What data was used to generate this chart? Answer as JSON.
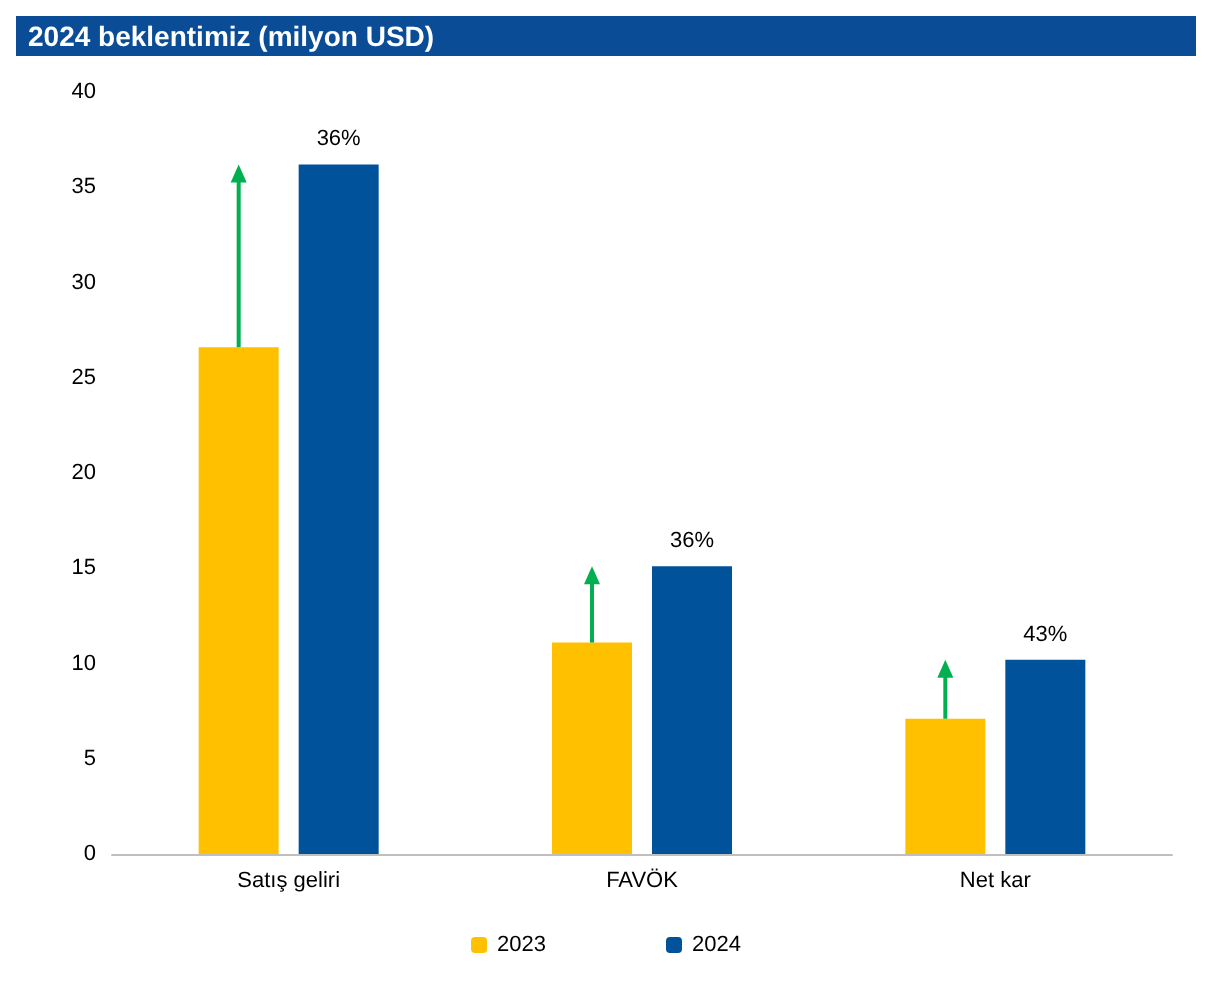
{
  "chart_data": {
    "type": "bar",
    "title": "2024 beklentimiz (milyon USD)",
    "categories": [
      "Satış geliri",
      "FAVÖK",
      "Net kar"
    ],
    "series": [
      {
        "name": "2023",
        "color": "#ffc000",
        "values": [
          26.6,
          11.1,
          7.1
        ]
      },
      {
        "name": "2024",
        "color": "#00539b",
        "values": [
          36.2,
          15.1,
          10.2
        ]
      }
    ],
    "annotations": [
      {
        "text": "36%",
        "x": "Satış geliri",
        "y": 36.2
      },
      {
        "text": "36%",
        "x": "FAVÖK",
        "y": 15.1
      },
      {
        "text": "43%",
        "x": "Net kar",
        "y": 10.2
      }
    ],
    "ylim": [
      0,
      40
    ],
    "yticks": [
      0,
      5,
      10,
      15,
      20,
      25,
      30,
      35,
      40
    ],
    "grid": false,
    "legend": "bottom"
  }
}
